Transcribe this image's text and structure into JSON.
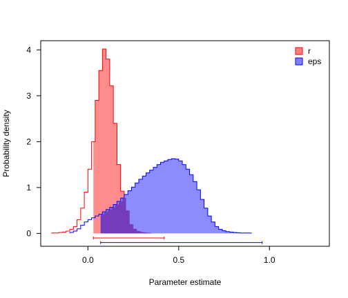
{
  "chart_data": {
    "type": "histogram",
    "xlabel": "Parameter estimate",
    "ylabel": "Probability density",
    "xlim": [
      -0.26,
      1.33
    ],
    "ylim": [
      -0.28,
      4.2
    ],
    "x_ticks": [
      0.0,
      0.5,
      1.0
    ],
    "x_tick_labels": [
      "0.0",
      "0.5",
      "1.0"
    ],
    "y_ticks": [
      0,
      1,
      2,
      3,
      4
    ],
    "y_tick_labels": [
      "0",
      "1",
      "2",
      "3",
      "4"
    ],
    "grid": false,
    "legend_position": "top-right",
    "series": [
      {
        "name": "r",
        "color": "#ff0000",
        "fill": "#ff8080",
        "bin_width": 0.02,
        "bin_start": -0.2,
        "densities": [
          0.01,
          0.01,
          0.02,
          0.03,
          0.05,
          0.09,
          0.15,
          0.3,
          0.55,
          0.9,
          1.4,
          2.0,
          2.9,
          3.55,
          4.02,
          3.8,
          3.22,
          2.4,
          1.5,
          0.92,
          0.5,
          0.2,
          0.1,
          0.05,
          0.03,
          0.02,
          0.01
        ],
        "hpd_interval": [
          0.03,
          0.42
        ],
        "hpd_y": -0.1
      },
      {
        "name": "eps",
        "color": "#0000ff",
        "fill": "#8080ff",
        "bin_width": 0.02,
        "bin_start": -0.1,
        "densities": [
          0.02,
          0.05,
          0.1,
          0.18,
          0.25,
          0.3,
          0.34,
          0.38,
          0.42,
          0.47,
          0.52,
          0.57,
          0.63,
          0.7,
          0.77,
          0.85,
          0.93,
          1.01,
          1.1,
          1.18,
          1.25,
          1.32,
          1.38,
          1.44,
          1.5,
          1.55,
          1.58,
          1.61,
          1.63,
          1.62,
          1.58,
          1.5,
          1.4,
          1.28,
          1.13,
          0.95,
          0.74,
          0.55,
          0.38,
          0.25,
          0.15,
          0.09,
          0.06,
          0.04,
          0.03,
          0.02,
          0.015,
          0.01,
          0.01,
          0.01
        ],
        "hpd_interval": [
          0.07,
          0.96
        ],
        "hpd_y": -0.2
      }
    ]
  }
}
